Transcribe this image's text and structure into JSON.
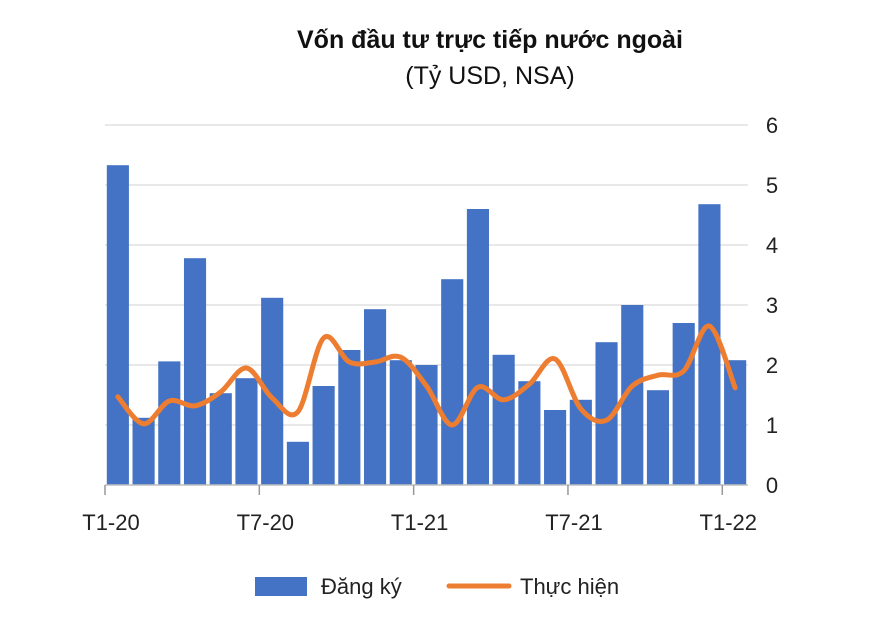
{
  "chart_data": {
    "type": "bar",
    "title": "Vốn đầu tư trực tiếp nước ngoài",
    "subtitle": "(Tỷ USD, NSA)",
    "x_tick_labels": [
      "T1-20",
      "T7-20",
      "T1-21",
      "T7-21",
      "T1-22"
    ],
    "x": [
      "T1-20",
      "T2-20",
      "T3-20",
      "T4-20",
      "T5-20",
      "T6-20",
      "T7-20",
      "T8-20",
      "T9-20",
      "T10-20",
      "T11-20",
      "T12-20",
      "T1-21",
      "T2-21",
      "T3-21",
      "T4-21",
      "T5-21",
      "T6-21",
      "T7-21",
      "T8-21",
      "T9-21",
      "T10-21",
      "T11-21",
      "T12-21",
      "T1-22"
    ],
    "ylim": [
      0,
      6
    ],
    "y_ticks": [
      0,
      1,
      2,
      3,
      4,
      5,
      6
    ],
    "y_axis_position": "right",
    "grid": true,
    "legend_position": "bottom",
    "series": [
      {
        "name": "Đăng ký",
        "type": "bar",
        "color": "#4472C4",
        "values": [
          5.33,
          1.12,
          2.06,
          3.78,
          1.53,
          1.78,
          3.12,
          0.72,
          1.65,
          2.25,
          2.93,
          2.08,
          2.0,
          3.43,
          4.6,
          2.17,
          1.73,
          1.25,
          1.42,
          2.38,
          3.0,
          1.58,
          2.7,
          4.68,
          2.08
        ]
      },
      {
        "name": "Thực hiện",
        "type": "line",
        "color": "#ED7D31",
        "values": [
          1.47,
          1.02,
          1.4,
          1.32,
          1.55,
          1.95,
          1.45,
          1.22,
          2.45,
          2.05,
          2.05,
          2.13,
          1.65,
          1.0,
          1.63,
          1.42,
          1.68,
          2.1,
          1.27,
          1.08,
          1.65,
          1.83,
          1.9,
          2.65,
          1.62
        ]
      }
    ]
  }
}
